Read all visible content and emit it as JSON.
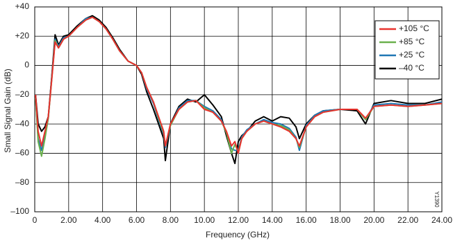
{
  "chart_data": {
    "type": "line",
    "xlabel": "Frequency (GHz)",
    "ylabel": "Small Signal Gain (dB)",
    "annotation": "Y1390",
    "grid": true,
    "legend": "upper right",
    "xlim": [
      0,
      24
    ],
    "ylim": [
      -100,
      40
    ],
    "xticks": [
      0,
      {
        "value": 2,
        "label": "2.00"
      },
      {
        "value": 4,
        "label": "4.00"
      },
      {
        "value": 6,
        "label": "6.00"
      },
      {
        "value": 8,
        "label": "8.00"
      },
      {
        "value": 10,
        "label": "10.00"
      },
      {
        "value": 12,
        "label": "12.00"
      },
      {
        "value": 14,
        "label": "14.00"
      },
      {
        "value": 16,
        "label": "16.00"
      },
      {
        "value": 18,
        "label": "18.00"
      },
      {
        "value": 20,
        "label": "20.00"
      },
      {
        "value": 22,
        "label": "22.00"
      },
      {
        "value": 24,
        "label": "24.00"
      }
    ],
    "yticks": [
      {
        "value": 40,
        "label": "+40"
      },
      {
        "value": 20,
        "label": "+20"
      },
      0,
      {
        "value": -20,
        "label": "–20"
      },
      {
        "value": -40,
        "label": "–40"
      },
      {
        "value": -60,
        "label": "–60"
      },
      {
        "value": -80,
        "label": "–80"
      },
      {
        "value": -100,
        "label": "–100"
      }
    ],
    "x": [
      0.05,
      0.2,
      0.4,
      0.6,
      0.8,
      1.0,
      1.2,
      1.4,
      1.7,
      2.0,
      2.5,
      3.0,
      3.4,
      3.8,
      4.2,
      4.6,
      5.0,
      5.5,
      6.0,
      6.3,
      6.6,
      7.0,
      7.3,
      7.6,
      7.7,
      8.0,
      8.5,
      9.0,
      9.5,
      10.0,
      10.5,
      11.0,
      11.3,
      11.6,
      11.8,
      12.0,
      12.2,
      12.5,
      13.0,
      13.5,
      14.0,
      14.5,
      15.0,
      15.4,
      15.6,
      16.0,
      16.5,
      17.0,
      18.0,
      19.0,
      19.5,
      20.0,
      21.0,
      22.0,
      23.0,
      24.0
    ],
    "series": [
      {
        "name": "–40 °C",
        "color": "#000000",
        "values": [
          -20,
          -40,
          -45,
          -42,
          -35,
          -8,
          21,
          14,
          20,
          21,
          27,
          32,
          34,
          31,
          26,
          19,
          11,
          3,
          0,
          -6,
          -18,
          -30,
          -40,
          -50,
          -65,
          -40,
          -28,
          -23,
          -25,
          -20,
          -27,
          -35,
          -48,
          -60,
          -67,
          -52,
          -48,
          -45,
          -38,
          -35,
          -38,
          -35,
          -36,
          -42,
          -50,
          -40,
          -34,
          -31,
          -30,
          -31,
          -40,
          -26,
          -24,
          -26,
          -26,
          -23
        ]
      },
      {
        "name": "+25 °C",
        "color": "#1f77b4",
        "values": [
          -22,
          -50,
          -58,
          -48,
          -36,
          -9,
          18,
          13,
          19,
          20,
          26,
          32,
          33,
          30,
          25,
          18,
          10,
          3,
          0,
          -5,
          -16,
          -26,
          -37,
          -47,
          -56,
          -41,
          -29,
          -24,
          -24,
          -28,
          -31,
          -37,
          -46,
          -57,
          -58,
          -58,
          -49,
          -44,
          -40,
          -37,
          -39,
          -40,
          -43,
          -49,
          -58,
          -41,
          -34,
          -31,
          -30,
          -30,
          -37,
          -27,
          -26,
          -27,
          -27,
          -25
        ]
      },
      {
        "name": "+85 °C",
        "color": "#6ab04c",
        "values": [
          -22,
          -52,
          -62,
          -50,
          -36,
          -10,
          17,
          12,
          18,
          20,
          26,
          31,
          33,
          30,
          25,
          18,
          10,
          3,
          0,
          -5,
          -15,
          -25,
          -36,
          -46,
          -55,
          -41,
          -30,
          -25,
          -24,
          -29,
          -32,
          -38,
          -46,
          -60,
          -54,
          -59,
          -50,
          -45,
          -40,
          -38,
          -40,
          -41,
          -44,
          -50,
          -56,
          -42,
          -35,
          -32,
          -30,
          -30,
          -37,
          -28,
          -27,
          -28,
          -27,
          -26
        ]
      },
      {
        "name": "+105 °C",
        "color": "#e8322d",
        "values": [
          -20,
          -45,
          -55,
          -45,
          -35,
          -10,
          16,
          12,
          18,
          20,
          26,
          31,
          33,
          30,
          25,
          18,
          10,
          3,
          0,
          -5,
          -15,
          -25,
          -35,
          -45,
          -55,
          -40,
          -30,
          -25,
          -24,
          -30,
          -32,
          -38,
          -45,
          -55,
          -52,
          -60,
          -50,
          -45,
          -40,
          -38,
          -40,
          -42,
          -45,
          -50,
          -55,
          -42,
          -35,
          -32,
          -30,
          -30,
          -36,
          -28,
          -27,
          -28,
          -27,
          -26
        ]
      }
    ]
  }
}
